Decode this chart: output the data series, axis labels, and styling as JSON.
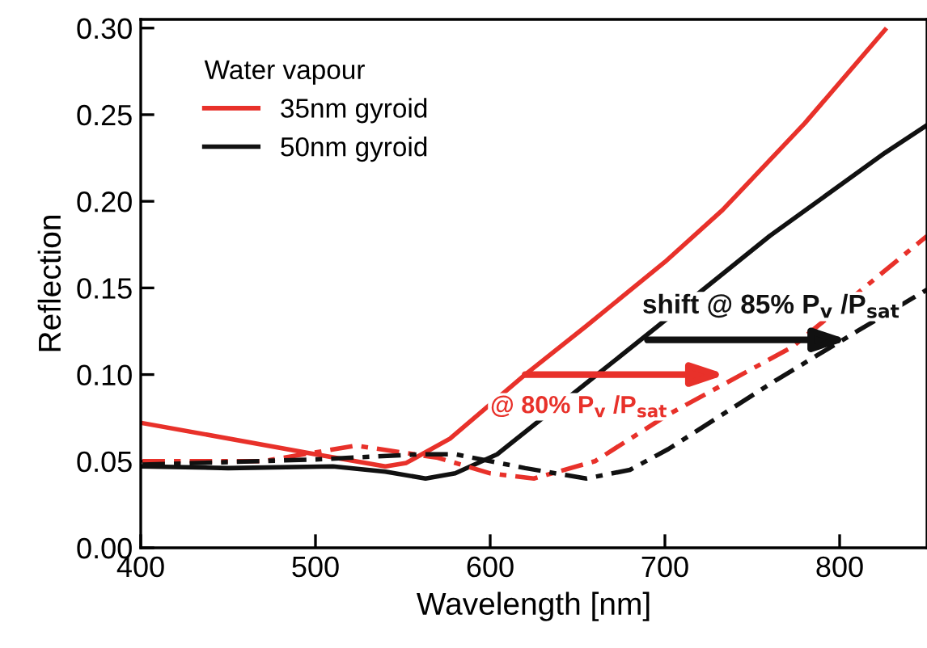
{
  "chart_data": {
    "type": "line",
    "xlabel": "Wavelength [nm]",
    "ylabel": "Reflection",
    "legend_title": "Water vapour",
    "legend": "top left",
    "xlim": [
      400,
      850
    ],
    "xticks": [
      400,
      500,
      600,
      700,
      800
    ],
    "ylim": [
      0,
      0.305
    ],
    "yticks": [
      {
        "value": 0,
        "label": "0.00"
      },
      {
        "value": 0.05,
        "label": "0.05"
      },
      {
        "value": 0.1,
        "label": "0.10"
      },
      {
        "value": 0.15,
        "label": "0.15"
      },
      {
        "value": 0.2,
        "label": "0.20"
      },
      {
        "value": 0.25,
        "label": "0.25"
      },
      {
        "value": 0.3,
        "label": "0.30"
      }
    ],
    "grid": false,
    "series": [
      {
        "name": "35nm gyroid",
        "color": "#e8312a",
        "line_style": "solid",
        "x": [
          401,
          500,
          540,
          552,
          577,
          620,
          655,
          700,
          733,
          780,
          826
        ],
        "values": [
          0.072,
          0.054,
          0.047,
          0.049,
          0.063,
          0.1,
          0.128,
          0.165,
          0.195,
          0.245,
          0.299
        ]
      },
      {
        "name": "50nm gyroid",
        "color": "#111111",
        "line_style": "solid",
        "x": [
          401,
          450,
          510,
          540,
          563,
          580,
          604,
          655,
          696,
          760,
          826,
          850
        ],
        "values": [
          0.047,
          0.046,
          0.047,
          0.044,
          0.04,
          0.043,
          0.054,
          0.095,
          0.128,
          0.18,
          0.228,
          0.244
        ]
      },
      {
        "color": "#e8312a",
        "line_style": "dashed",
        "x": [
          401,
          470,
          523,
          570,
          600,
          625,
          660,
          702,
          773,
          850
        ],
        "values": [
          0.05,
          0.05,
          0.059,
          0.052,
          0.043,
          0.04,
          0.05,
          0.077,
          0.116,
          0.18
        ]
      },
      {
        "color": "#111111",
        "line_style": "dashed",
        "x": [
          401,
          500,
          560,
          580,
          620,
          655,
          680,
          702,
          764,
          810,
          850
        ],
        "values": [
          0.048,
          0.051,
          0.054,
          0.054,
          0.046,
          0.04,
          0.045,
          0.057,
          0.097,
          0.125,
          0.149
        ]
      }
    ],
    "annotations": [
      {
        "text": "shift @ 85% P$_{v}$ /P$_{sat}$",
        "x": 690,
        "y": 0.12
      },
      {
        "text": "@ 80% P$_{v}$ /P$_{sat}$",
        "x": 620,
        "y": 0.1
      }
    ]
  }
}
